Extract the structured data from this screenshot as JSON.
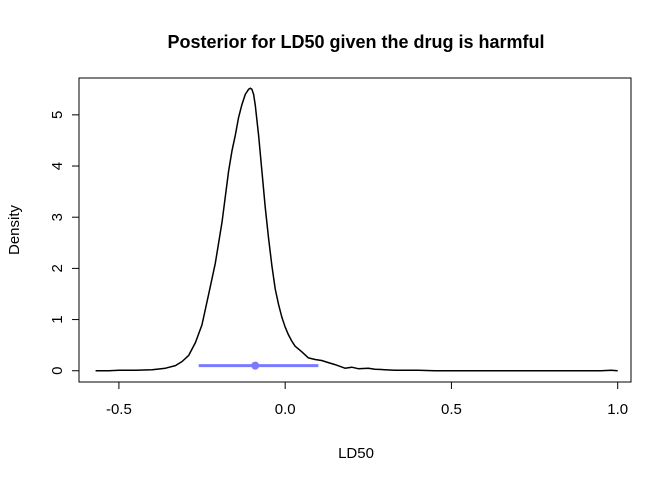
{
  "chart_data": {
    "type": "line",
    "title": "Posterior for LD50 given the drug is harmful",
    "xlabel": "LD50",
    "ylabel": "Density",
    "xlim": [
      -0.62,
      1.04
    ],
    "ylim": [
      -0.22,
      5.72
    ],
    "xticks": [
      -0.5,
      0.0,
      0.5,
      1.0
    ],
    "xtick_labels": [
      "-0.5",
      "0.0",
      "0.5",
      "1.0"
    ],
    "yticks": [
      0,
      1,
      2,
      3,
      4,
      5
    ],
    "ytick_labels": [
      "0",
      "1",
      "2",
      "3",
      "4",
      "5"
    ],
    "grid": false,
    "series": [
      {
        "color": "#000000",
        "x": [
          -0.57,
          -0.53,
          -0.5,
          -0.45,
          -0.4,
          -0.36,
          -0.33,
          -0.31,
          -0.29,
          -0.27,
          -0.25,
          -0.23,
          -0.21,
          -0.19,
          -0.17,
          -0.16,
          -0.15,
          -0.14,
          -0.13,
          -0.12,
          -0.11,
          -0.105,
          -0.1,
          -0.095,
          -0.09,
          -0.08,
          -0.07,
          -0.06,
          -0.05,
          -0.04,
          -0.03,
          -0.02,
          -0.01,
          0.0,
          0.01,
          0.02,
          0.03,
          0.05,
          0.07,
          0.09,
          0.11,
          0.13,
          0.15,
          0.18,
          0.2,
          0.22,
          0.25,
          0.27,
          0.3,
          0.33,
          0.36,
          0.4,
          0.45,
          0.5,
          0.6,
          0.7,
          0.8,
          0.9,
          0.95,
          0.98,
          1.0
        ],
        "y": [
          0.0,
          0.0,
          0.01,
          0.01,
          0.02,
          0.05,
          0.1,
          0.18,
          0.3,
          0.55,
          0.9,
          1.5,
          2.1,
          2.9,
          3.9,
          4.3,
          4.6,
          4.95,
          5.2,
          5.4,
          5.5,
          5.52,
          5.5,
          5.4,
          5.2,
          4.6,
          3.9,
          3.2,
          2.6,
          2.05,
          1.6,
          1.3,
          1.05,
          0.85,
          0.7,
          0.58,
          0.48,
          0.37,
          0.25,
          0.22,
          0.2,
          0.16,
          0.12,
          0.05,
          0.07,
          0.04,
          0.05,
          0.03,
          0.02,
          0.01,
          0.01,
          0.01,
          0.0,
          0.0,
          0.0,
          0.0,
          0.0,
          0.0,
          0.0,
          0.01,
          0.0
        ]
      }
    ],
    "interval": {
      "color": "#7b7bff",
      "low": -0.26,
      "high": 0.1,
      "point": -0.09,
      "y": 0.1
    }
  }
}
